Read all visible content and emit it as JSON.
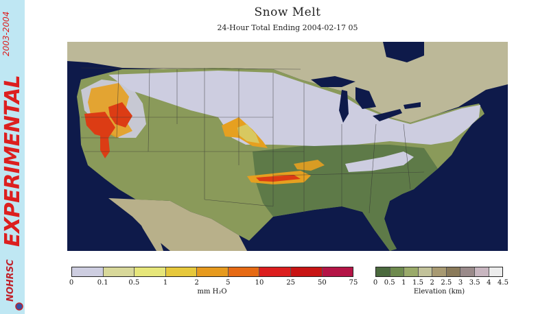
{
  "header": {
    "title": "Snow Melt",
    "subtitle": "24-Hour Total Ending 2004-02-17 05"
  },
  "sidebar": {
    "years": "2003-2004",
    "label": "EXPERIMENTAL",
    "logo_text": "NOHRSC"
  },
  "legend_melt": {
    "unit_label": "mm H₂O",
    "ticks": [
      "0",
      "0.1",
      "0.5",
      "1",
      "2",
      "5",
      "10",
      "25",
      "50",
      "75"
    ],
    "colors": [
      "#cdcde0",
      "#d8d89a",
      "#e6e67a",
      "#e6c83c",
      "#e69a1e",
      "#e66a14",
      "#dc1e1e",
      "#c81414",
      "#b41446"
    ]
  },
  "legend_elevation": {
    "unit_label": "Elevation (km)",
    "ticks": [
      "0",
      "0.5",
      "1",
      "1.5",
      "2",
      "2.5",
      "3",
      "3.5",
      "4",
      "4.5"
    ],
    "colors": [
      "#4b6a3e",
      "#6e8a4e",
      "#9aaa6a",
      "#c2c29a",
      "#a89a72",
      "#8a7a5a",
      "#9a8a8a",
      "#c8b6c0",
      "#ececec"
    ]
  },
  "map": {
    "colors": {
      "ocean": "#0e1a4a",
      "land_low": "#5e7a48",
      "land_mid": "#8a9a5a",
      "land_high": "#a8a072",
      "canada": "#bcb898",
      "mexico": "#b8b08a",
      "snow": "#cdcde0",
      "melt_low": "#d8c860",
      "melt_mid": "#e6a020",
      "melt_high": "#dc3c14",
      "lakes": "#0e1a4a",
      "borders": "#333333"
    }
  }
}
